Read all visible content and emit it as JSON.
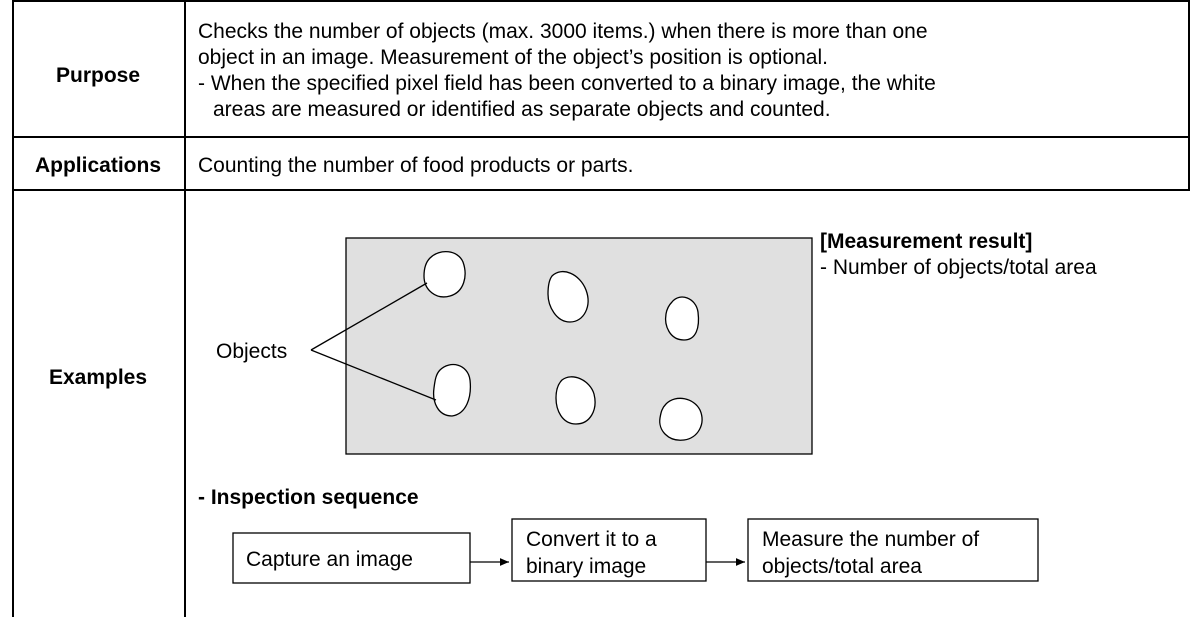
{
  "rows": [
    {
      "header": "Purpose",
      "lines": [
        "Checks the number of objects (max. 3000 items.) when there is more than one",
        "object in an image. Measurement of the object’s position is optional.",
        "- When the specified pixel field has been converted to a binary image, the white",
        "areas are measured or identified as separate objects and counted."
      ]
    },
    {
      "header": "Applications",
      "lines": [
        "Counting the number of food products or parts."
      ]
    },
    {
      "header": "Examples"
    }
  ],
  "example": {
    "objects_label": "Objects",
    "result_title": "[Measurement result]",
    "result_text": "- Number of objects/total area",
    "sequence_title": "- Inspection sequence",
    "steps": [
      {
        "lines": [
          "Capture an image"
        ]
      },
      {
        "lines": [
          "Convert it to a",
          "binary image"
        ]
      },
      {
        "lines": [
          "Measure the number of",
          "objects/total area"
        ]
      }
    ]
  }
}
